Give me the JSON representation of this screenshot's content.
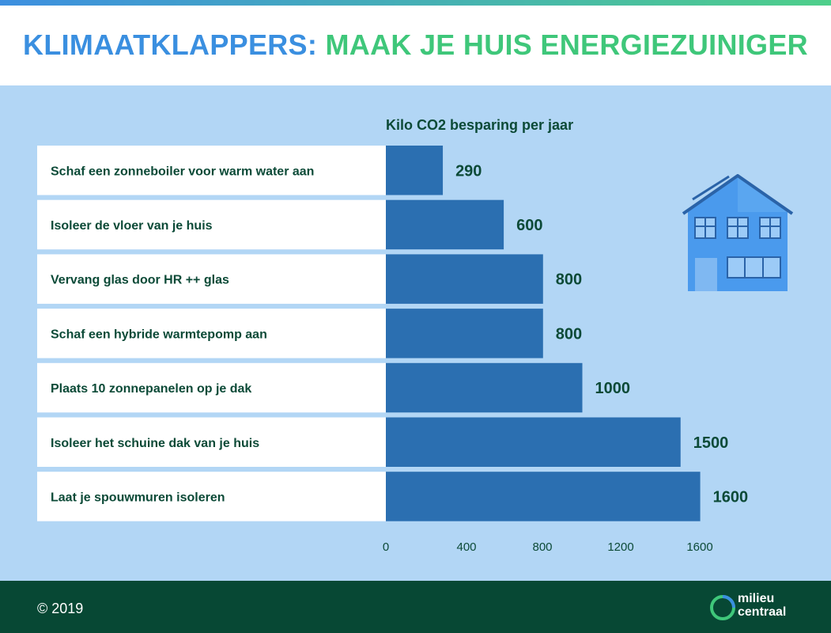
{
  "title": {
    "part1": "KLIMAATKLAPPERS:",
    "part2": "MAAK JE HUIS ENERGIEZUINIGER"
  },
  "chart_data": {
    "type": "bar",
    "orientation": "horizontal",
    "title": "Kilo CO2 besparing per jaar",
    "categories": [
      "Schaf een zonneboiler voor warm water aan",
      "Isoleer de vloer van je huis",
      "Vervang glas door HR ++ glas",
      "Schaf een hybride warmtepomp aan",
      "Plaats 10 zonnepanelen op je dak",
      "Isoleer het schuine dak van je huis",
      "Laat je spouwmuren isoleren"
    ],
    "values": [
      290,
      600,
      800,
      800,
      1000,
      1500,
      1600
    ],
    "xlim": [
      0,
      1600
    ],
    "xticks": [
      "0",
      "400",
      "800",
      "1200",
      "1600"
    ],
    "grid": false,
    "bar_color": "#2b6fb1",
    "label_color": "#0c4a37"
  },
  "footer": {
    "copyright": "© 2019",
    "logo_line1": "milieu",
    "logo_line2": "centraal"
  },
  "colors": {
    "title_blue": "#3a8fe0",
    "title_green": "#3fc77a",
    "panel": "#b2d6f5",
    "footer": "#074834"
  }
}
